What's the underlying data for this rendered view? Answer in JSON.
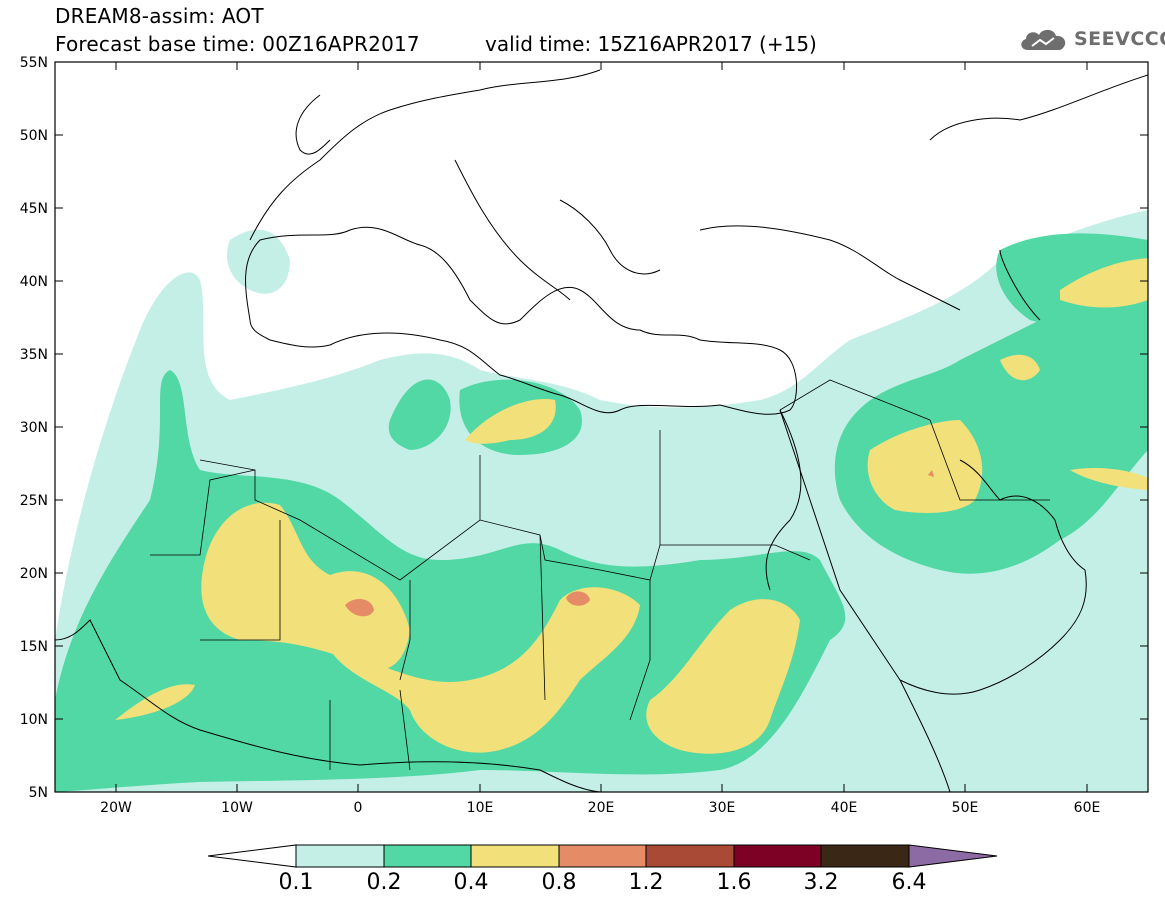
{
  "header": {
    "title_line1": "DREAM8-assim: AOT",
    "title_line2": "Forecast base time: 00Z16APR2017",
    "valid_time": "valid time: 15Z16APR2017 (+15)",
    "logo_text": "SEEVCCC",
    "logo_icon": "cloud-icon"
  },
  "map": {
    "lat_labels": [
      "55N",
      "50N",
      "45N",
      "40N",
      "35N",
      "30N",
      "25N",
      "20N",
      "15N",
      "10N",
      "5N"
    ],
    "lon_labels": [
      "20W",
      "10W",
      "0",
      "10E",
      "20E",
      "30E",
      "40E",
      "50E",
      "60E"
    ],
    "extent": {
      "lon": [
        -25,
        65
      ],
      "lat": [
        5,
        55
      ]
    }
  },
  "colorbar": {
    "levels": [
      "0.1",
      "0.2",
      "0.4",
      "0.8",
      "1.2",
      "1.6",
      "3.2",
      "6.4"
    ],
    "colors": [
      "#ffffff",
      "#c4efe7",
      "#52d8a5",
      "#f2e07a",
      "#e58c66",
      "#a84a36",
      "#7d0025",
      "#3b2716",
      "#8c6ba5"
    ]
  }
}
